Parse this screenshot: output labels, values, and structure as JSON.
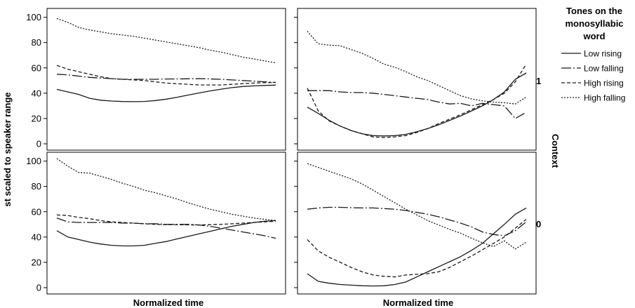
{
  "chart_data": {
    "type": "line",
    "ylabel": "st scaled to speaker range",
    "xlabel": "Normalized time",
    "ylim": [
      -5,
      107
    ],
    "yticks": [
      0,
      20,
      40,
      60,
      80,
      100
    ],
    "x": [
      0,
      0.05,
      0.1,
      0.15,
      0.2,
      0.25,
      0.3,
      0.35,
      0.4,
      0.45,
      0.5,
      0.55,
      0.6,
      0.65,
      0.7,
      0.75,
      0.8,
      0.85,
      0.9,
      0.95,
      1.0
    ],
    "grid": false,
    "legend": {
      "title_lines": [
        "Tones on the",
        "monosyllabic",
        "word"
      ],
      "position": "right",
      "entries": [
        "Low rising",
        "Low falling",
        "High rising",
        "High falling"
      ]
    },
    "facet_row_title": "Context",
    "facet_rows": [
      "1",
      "0"
    ],
    "panels": [
      {
        "row": "1",
        "col": 0,
        "series": [
          {
            "name": "Low rising",
            "values": [
              43,
              41,
              39,
              36,
              34.5,
              33.8,
              33.4,
              33.3,
              33.5,
              34.2,
              35.3,
              36.8,
              38.5,
              40.2,
              41.8,
              43.2,
              44.4,
              45.3,
              45.8,
              46.1,
              46.4
            ]
          },
          {
            "name": "Low falling",
            "values": [
              55,
              54.5,
              53.5,
              52.5,
              52,
              51.5,
              51,
              51,
              51,
              51,
              51.2,
              51.3,
              51.4,
              51.5,
              51.3,
              51,
              50.5,
              50,
              49.5,
              49,
              48.5
            ]
          },
          {
            "name": "High rising",
            "values": [
              62,
              59,
              57,
              55,
              53,
              51.5,
              51,
              50.5,
              50,
              49,
              48,
              47.5,
              47,
              46.5,
              46.5,
              46.5,
              47,
              47.5,
              48,
              48.3,
              48.5
            ]
          },
          {
            "name": "High falling",
            "values": [
              99,
              96,
              92,
              90,
              88.5,
              87,
              86,
              85,
              83.5,
              82,
              80.5,
              79,
              77.5,
              76,
              74,
              72.5,
              70.5,
              68.5,
              67,
              65.5,
              64
            ]
          }
        ]
      },
      {
        "row": "1",
        "col": 1,
        "series": [
          {
            "name": "Low rising",
            "values": [
              29,
              24,
              18.5,
              14,
              10.5,
              8,
              6.5,
              6.2,
              6.5,
              7.5,
              9.5,
              12,
              15,
              18.5,
              22,
              26,
              30,
              35,
              41,
              51,
              56
            ]
          },
          {
            "name": "Low falling",
            "values": [
              42,
              42,
              42,
              41,
              40.5,
              40.5,
              40,
              39,
              38,
              37,
              36,
              35,
              33,
              31.5,
              32,
              30,
              32,
              31,
              30,
              20,
              25
            ]
          },
          {
            "name": "High rising",
            "values": [
              44,
              26,
              18,
              14,
              10.5,
              8,
              5.5,
              5,
              5.5,
              6.5,
              9,
              12,
              16,
              19.5,
              23,
              27,
              31,
              35,
              40,
              49,
              63
            ]
          },
          {
            "name": "High falling",
            "values": [
              89,
              79,
              78,
              77.5,
              74.5,
              71.5,
              67.5,
              63,
              60.5,
              57,
              53,
              50,
              46,
              42,
              38,
              35.5,
              34,
              33,
              32.5,
              31.5,
              37
            ]
          }
        ]
      },
      {
        "row": "0",
        "col": 0,
        "series": [
          {
            "name": "Low rising",
            "values": [
              45,
              40,
              38,
              36,
              34.5,
              33.5,
              33,
              33,
              33.5,
              35,
              36.5,
              38.5,
              40.5,
              42.5,
              44.5,
              46.5,
              48.5,
              50,
              51.5,
              52.5,
              53
            ]
          },
          {
            "name": "Low falling",
            "values": [
              55,
              52,
              51.5,
              51.5,
              51.5,
              51.5,
              51,
              51,
              50.5,
              50.5,
              50,
              50,
              50,
              49.5,
              48.5,
              47,
              45.5,
              44,
              42.5,
              41,
              39
            ]
          },
          {
            "name": "High rising",
            "values": [
              57.5,
              57,
              55.5,
              54.5,
              53,
              52,
              51.5,
              51,
              50.5,
              50,
              49.8,
              49.7,
              49.6,
              49.5,
              49.8,
              50,
              50.5,
              51,
              51.5,
              52,
              52.5
            ]
          },
          {
            "name": "High falling",
            "values": [
              102,
              96,
              91,
              90.5,
              88,
              85.5,
              82.5,
              80,
              77,
              75,
              72.5,
              70,
              67,
              64.5,
              62,
              60,
              58,
              56.5,
              55,
              54,
              53
            ]
          }
        ]
      },
      {
        "row": "0",
        "col": 1,
        "series": [
          {
            "name": "Low rising",
            "values": [
              11,
              5,
              3.5,
              2.5,
              2,
              1.5,
              1.3,
              1.5,
              2.5,
              4.5,
              8.5,
              12.5,
              16.5,
              20.5,
              24.5,
              29.5,
              35,
              42.5,
              50,
              58,
              63
            ]
          },
          {
            "name": "Low falling",
            "values": [
              62,
              63,
              63.5,
              63.5,
              63.2,
              63,
              63,
              62.5,
              62,
              61,
              59.5,
              58,
              56,
              53.5,
              51,
              48,
              44,
              42,
              41,
              45,
              52
            ]
          },
          {
            "name": "High rising",
            "values": [
              38,
              29,
              24,
              20,
              16,
              12.5,
              10,
              9,
              8.5,
              10,
              10.5,
              11,
              12.5,
              16,
              20.5,
              25,
              30,
              35,
              40,
              47,
              54
            ]
          },
          {
            "name": "High falling",
            "values": [
              98,
              95,
              92,
              89,
              86,
              82,
              77,
              72,
              67,
              62,
              57.5,
              53,
              49.5,
              46,
              43,
              39,
              35.5,
              32.5,
              37,
              30.5,
              36
            ]
          }
        ]
      }
    ]
  }
}
